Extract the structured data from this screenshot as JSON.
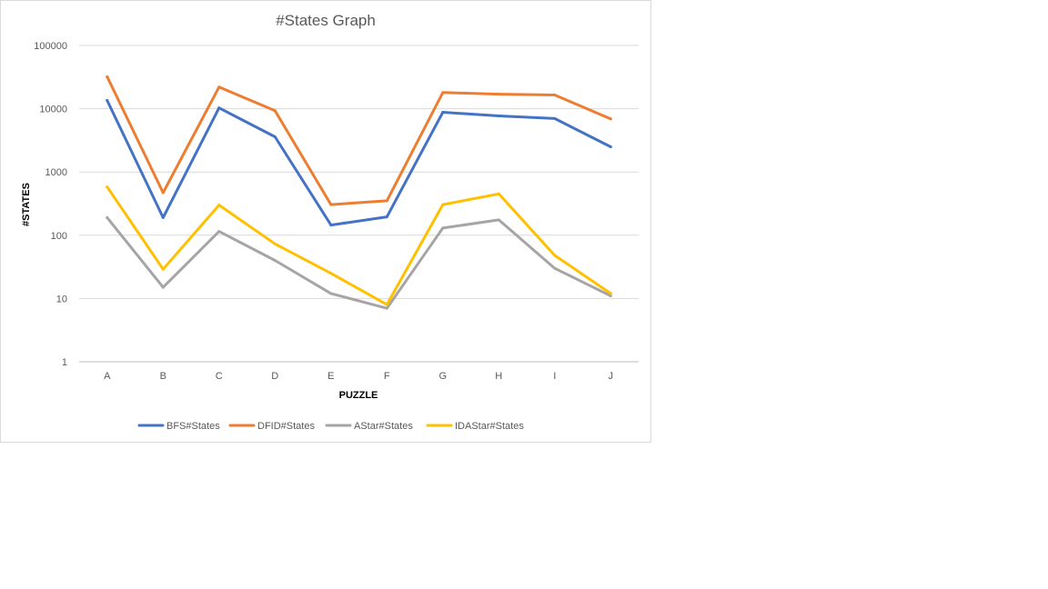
{
  "chart_data": {
    "type": "line",
    "title": "#States Graph",
    "xlabel": "PUZZLE",
    "ylabel": "#STATES",
    "y_scale": "log",
    "ylim": [
      1,
      100000
    ],
    "yticks": [
      "1",
      "10",
      "100",
      "1000",
      "10000",
      "100000"
    ],
    "grid": "horizontal",
    "legend": "bottom",
    "categories": [
      "A",
      "B",
      "C",
      "D",
      "E",
      "F",
      "G",
      "H",
      "I",
      "J"
    ],
    "series": [
      {
        "name": "BFS#States",
        "color": "#4472C4",
        "values": [
          13500,
          190,
          10300,
          3600,
          145,
          195,
          8800,
          7700,
          7000,
          2500
        ]
      },
      {
        "name": "DFID#States",
        "color": "#ED7D31",
        "values": [
          32000,
          470,
          22000,
          9300,
          305,
          350,
          18000,
          17000,
          16500,
          6900
        ]
      },
      {
        "name": "AStar#States",
        "color": "#A5A5A5",
        "values": [
          190,
          15,
          115,
          40,
          12,
          7,
          130,
          175,
          30,
          11
        ]
      },
      {
        "name": "IDAStar#States",
        "color": "#FFC000",
        "values": [
          580,
          29,
          300,
          73,
          25,
          8,
          305,
          450,
          48,
          12
        ]
      }
    ]
  }
}
